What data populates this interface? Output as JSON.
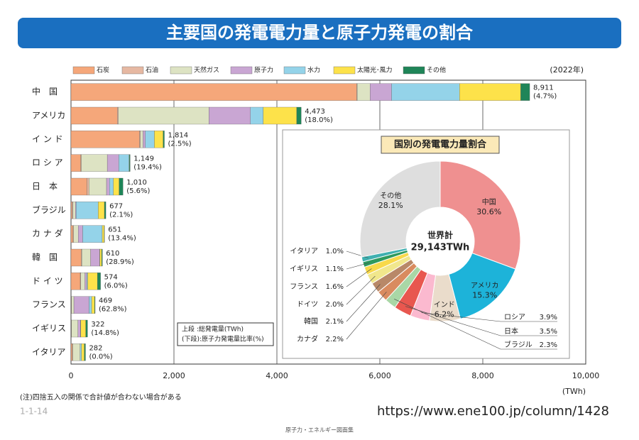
{
  "title": "主要国の発電電力量と原子力発電の割合",
  "year_note": "(2022年)",
  "box_note": [
    "上段 :総発電量(TWh)",
    "(下段):原子力発電量比率(%)"
  ],
  "footnote": "(注)四捨五入の関係で合計値が合わない場合がある",
  "page_number": "1-1-14",
  "url": "https://www.ene100.jp/column/1428",
  "footer": "原子力・エネルギー図面集",
  "chart_data": [
    {
      "type": "stacked-barh",
      "x_label": "(TWh)",
      "categories": [
        "中　国",
        "アメリカ",
        "イ ン ド",
        "ロ シ ア",
        "日　本",
        "ブラジル",
        "カ ナ ダ",
        "韓　国",
        "ド イ ツ",
        "フランス",
        "イギリス",
        "イタリア"
      ],
      "series": [
        {
          "name": "石炭",
          "color": "#f5a77a",
          "values": [
            5550,
            900,
            1330,
            190,
            310,
            20,
            40,
            200,
            180,
            3,
            5,
            25
          ]
        },
        {
          "name": "石油",
          "color": "#e6b8a2",
          "values": [
            10,
            20,
            20,
            10,
            40,
            20,
            10,
            10,
            10,
            8,
            5,
            10
          ]
        },
        {
          "name": "天然ガス",
          "color": "#dde3c3",
          "values": [
            250,
            1760,
            50,
            505,
            340,
            45,
            90,
            170,
            80,
            45,
            125,
            140
          ]
        },
        {
          "name": "原子力",
          "color": "#c9a6d3",
          "values": [
            417,
            805,
            45,
            223,
            57,
            14,
            87,
            176,
            34,
            295,
            48,
            0
          ]
        },
        {
          "name": "水力",
          "color": "#94d3e9",
          "values": [
            1320,
            250,
            175,
            200,
            77,
            430,
            380,
            4,
            20,
            50,
            8,
            30
          ]
        },
        {
          "name": "太陽光･風力",
          "color": "#fde24a",
          "values": [
            1190,
            650,
            170,
            7,
            110,
            120,
            38,
            35,
            190,
            58,
            95,
            55
          ]
        },
        {
          "name": "その他",
          "color": "#1f8558",
          "values": [
            174,
            88,
            24,
            14,
            76,
            28,
            6,
            15,
            60,
            10,
            36,
            22
          ]
        }
      ],
      "totals": [
        8911,
        4473,
        1814,
        1149,
        1010,
        677,
        651,
        610,
        574,
        469,
        322,
        282
      ],
      "total_labels": [
        "8,911",
        "4,473",
        "1,814",
        "1,149",
        "1,010",
        "677",
        "651",
        "610",
        "574",
        "469",
        "322",
        "282"
      ],
      "nuclear_shares": [
        4.7,
        18.0,
        2.5,
        19.4,
        5.6,
        2.1,
        13.4,
        28.9,
        6.0,
        62.8,
        14.8,
        0.0
      ],
      "nuclear_share_labels": [
        "(4.7%)",
        "(18.0%)",
        "(2.5%)",
        "(19.4%)",
        "(5.6%)",
        "(2.1%)",
        "(13.4%)",
        "(28.9%)",
        "(6.0%)",
        "(62.8%)",
        "(14.8%)",
        "(0.0%)"
      ],
      "xlim": [
        0,
        10000
      ],
      "xticks": [
        0,
        {
          "value": 2000,
          "label": "2,000"
        },
        {
          "value": 4000,
          "label": "4,000"
        },
        {
          "value": 6000,
          "label": "6,000"
        },
        {
          "value": 8000,
          "label": "8,000"
        },
        {
          "value": 10000,
          "label": "10,000"
        }
      ],
      "grid": true
    },
    {
      "type": "donut",
      "title": "国別の発電電力量割合",
      "center_label": [
        "世界計",
        "29,143TWh"
      ],
      "categories": [
        "中国",
        "アメリカ",
        "インド",
        "ロシア",
        "日本",
        "ブラジル",
        "カナダ",
        "韓国",
        "ドイツ",
        "フランス",
        "イギリス",
        "イタリア",
        "その他"
      ],
      "values": [
        30.6,
        15.3,
        6.2,
        3.9,
        3.5,
        2.3,
        2.2,
        2.1,
        2.0,
        1.6,
        1.1,
        1.0,
        28.1
      ],
      "value_labels": [
        "30.6%",
        "15.3%",
        "6.2%",
        "3.9%",
        "3.5%",
        "2.3%",
        "2.2%",
        "2.1%",
        "2.0%",
        "1.6%",
        "1.1%",
        "1.0%",
        "28.1%"
      ],
      "colors": [
        "#ef9090",
        "#1db3d9",
        "#eadccb",
        "#fbb9cf",
        "#e8574f",
        "#a9d7a6",
        "#d98b5f",
        "#b88868",
        "#f1e78c",
        "#f8d94a",
        "#2f9a5e",
        "#3fb0b0",
        "#dedede"
      ]
    }
  ]
}
